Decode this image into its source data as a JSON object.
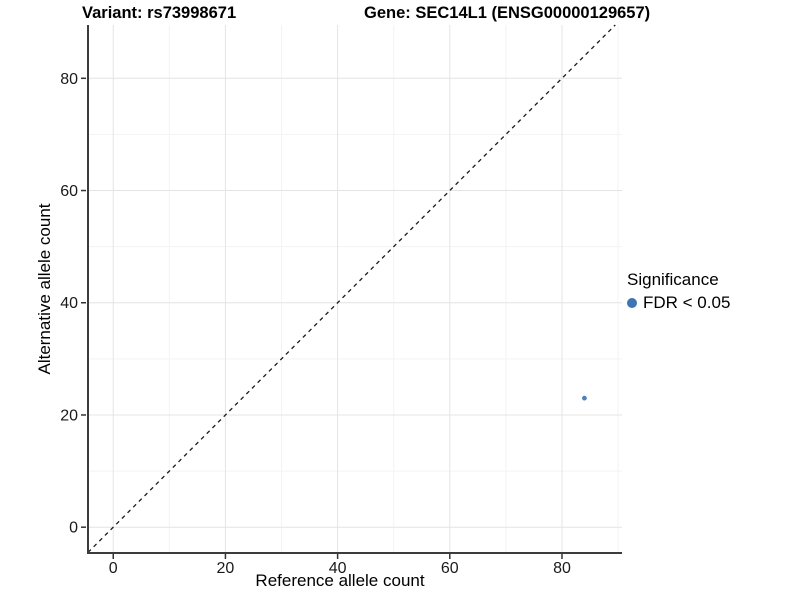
{
  "chart_data": {
    "type": "scatter",
    "title_left": "Variant: rs73998671",
    "title_right": "Gene: SEC14L1 (ENSG00000129657)",
    "xlabel": "Reference allele count",
    "ylabel": "Alternative allele count",
    "xlim": [
      -4.5,
      90.7
    ],
    "ylim": [
      -4.6,
      89.5
    ],
    "x_ticks": [
      0,
      20,
      40,
      60,
      80
    ],
    "y_ticks": [
      0,
      20,
      40,
      60,
      80
    ],
    "x_minor_gridlines": [
      10,
      30,
      50,
      70,
      90
    ],
    "y_minor_gridlines": [
      10,
      30,
      50,
      70
    ],
    "grid": "major+minor",
    "legend_position": "right",
    "points": [
      {
        "x": 84,
        "y": 23,
        "series": "FDR < 0.05"
      }
    ],
    "reference_line": {
      "slope": 1,
      "intercept": 0,
      "style": "dashed"
    },
    "legend": {
      "title": "Significance",
      "entries": [
        {
          "label": "FDR < 0.05",
          "color": "#3D74B2"
        }
      ]
    },
    "colors": {
      "point": "#4E81BA",
      "major_grid": "#E4E4E4",
      "minor_grid": "#F3F3F3",
      "axis_line": "#3C3C3C",
      "tick": "#333333",
      "tick_label": "#1A1A1A",
      "reference_line": "#1A1A1A"
    }
  }
}
